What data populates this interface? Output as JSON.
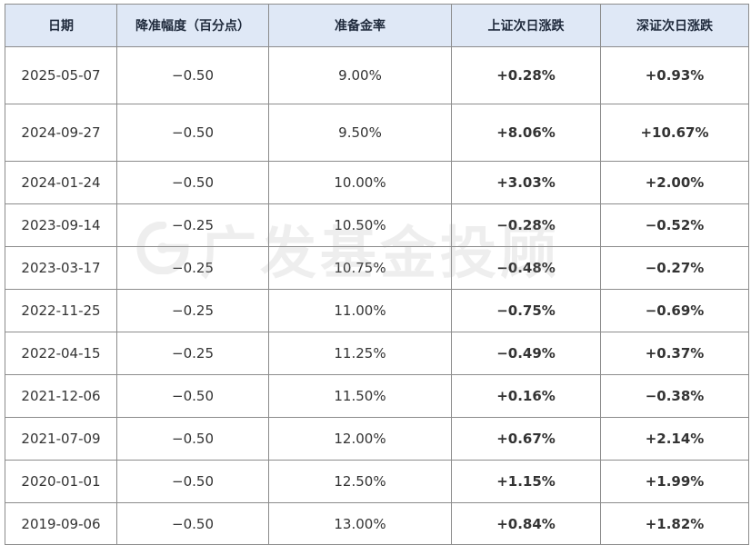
{
  "colors": {
    "header_bg": "#dfe8f6",
    "border": "#8c8c8c",
    "rise": "#e8823a",
    "fall": "#64aa50",
    "text": "#333333"
  },
  "table": {
    "headers": [
      "日期",
      "降准幅度（百分点）",
      "准备金率",
      "上证次日涨跌",
      "深证次日涨跌"
    ],
    "rows": [
      {
        "date": "2025-05-07",
        "cut": "−0.50",
        "ratio": "9.00%",
        "sh": "+0.28%",
        "sh_dir": "up",
        "sz": "+0.93%",
        "sz_dir": "up"
      },
      {
        "date": "2024-09-27",
        "cut": "−0.50",
        "ratio": "9.50%",
        "sh": "+8.06%",
        "sh_dir": "up",
        "sz": "+10.67%",
        "sz_dir": "up"
      },
      {
        "date": "2024-01-24",
        "cut": "−0.50",
        "ratio": "10.00%",
        "sh": "+3.03%",
        "sh_dir": "up",
        "sz": "+2.00%",
        "sz_dir": "up"
      },
      {
        "date": "2023-09-14",
        "cut": "−0.25",
        "ratio": "10.50%",
        "sh": "−0.28%",
        "sh_dir": "down",
        "sz": "−0.52%",
        "sz_dir": "down"
      },
      {
        "date": "2023-03-17",
        "cut": "−0.25",
        "ratio": "10.75%",
        "sh": "−0.48%",
        "sh_dir": "down",
        "sz": "−0.27%",
        "sz_dir": "down"
      },
      {
        "date": "2022-11-25",
        "cut": "−0.25",
        "ratio": "11.00%",
        "sh": "−0.75%",
        "sh_dir": "down",
        "sz": "−0.69%",
        "sz_dir": "down"
      },
      {
        "date": "2022-04-15",
        "cut": "−0.25",
        "ratio": "11.25%",
        "sh": "−0.49%",
        "sh_dir": "down",
        "sz": "+0.37%",
        "sz_dir": "up"
      },
      {
        "date": "2021-12-06",
        "cut": "−0.50",
        "ratio": "11.50%",
        "sh": "+0.16%",
        "sh_dir": "up",
        "sz": "−0.38%",
        "sz_dir": "down"
      },
      {
        "date": "2021-07-09",
        "cut": "−0.50",
        "ratio": "12.00%",
        "sh": "+0.67%",
        "sh_dir": "up",
        "sz": "+2.14%",
        "sz_dir": "up"
      },
      {
        "date": "2020-01-01",
        "cut": "−0.50",
        "ratio": "12.50%",
        "sh": "+1.15%",
        "sh_dir": "up",
        "sz": "+1.99%",
        "sz_dir": "up"
      },
      {
        "date": "2019-09-06",
        "cut": "−0.50",
        "ratio": "13.00%",
        "sh": "+0.84%",
        "sh_dir": "up",
        "sz": "+1.82%",
        "sz_dir": "up"
      }
    ]
  },
  "watermark": {
    "text": "广发基金投顾",
    "icon": "gf-fund-logo-icon"
  }
}
